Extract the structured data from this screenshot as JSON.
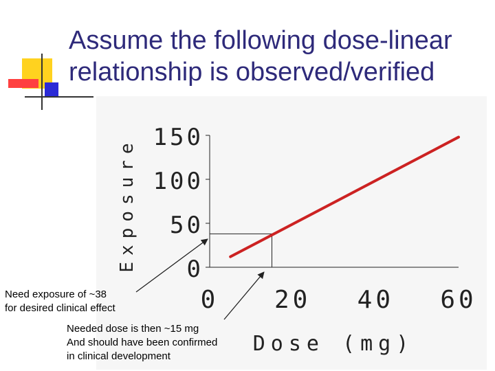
{
  "slide": {
    "title_line1": "Assume the following dose-linear",
    "title_line2": "relationship is observed/verified"
  },
  "annotations": {
    "exposure_note_line1": "Need exposure of ~38",
    "exposure_note_line2": "for desired clinical effect",
    "dose_note_line1": "Needed dose is then ~15 mg",
    "dose_note_line2": "And should have been confirmed",
    "dose_note_line3": "in clinical development"
  },
  "colors": {
    "title": "#2e2a7a",
    "line": "#cc2222",
    "deco_yellow": "#ffd21f",
    "deco_red": "#ff3b3b",
    "deco_blue": "#2b2bd6"
  },
  "chart_data": {
    "type": "line",
    "xlabel": "Dose (mg)",
    "ylabel": "Exposure",
    "xlim": [
      0,
      60
    ],
    "ylim": [
      0,
      150
    ],
    "x_ticks": [
      0,
      20,
      40,
      60
    ],
    "y_ticks": [
      0,
      50,
      100,
      150
    ],
    "series": [
      {
        "x": [
          5,
          60
        ],
        "y": [
          12,
          148
        ]
      }
    ],
    "reference": {
      "x": 15,
      "y": 38
    }
  }
}
